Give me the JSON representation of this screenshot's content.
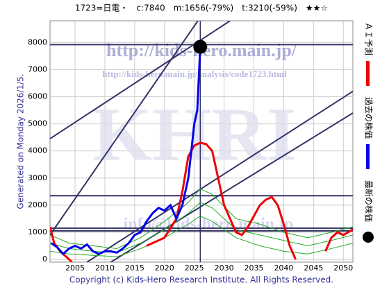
{
  "chart_data": {
    "type": "line",
    "title": "1723=日電・　c:7840　m:1656(-79%)　t:3210(-59%)　★★☆",
    "y_label": "Generated on Monday 2026/1/5.",
    "footer": "Copyright (c) Kids-Hero Research Institute. All Rights Reserved.",
    "watermarks": [
      "http://kids-hero.main.jp/",
      "http://kids-hero.main.jp/analysis/code1723.html",
      "KHRI",
      "info@kids-hero.main.jp"
    ],
    "xlim": [
      2000.8,
      2051.6
    ],
    "ylim": [
      -100,
      8800
    ],
    "xticks": [
      2005,
      2010,
      2015,
      2020,
      2025,
      2030,
      2035,
      2040,
      2045,
      2050
    ],
    "yticks": [
      0,
      1000,
      2000,
      3000,
      4000,
      5000,
      6000,
      7000,
      8000
    ],
    "grid": true,
    "series": [
      {
        "color": "#22aa22",
        "x": [
          2000.8,
          2004,
          2008,
          2012,
          2016,
          2020,
          2024,
          2026,
          2028,
          2032,
          2036,
          2040,
          2044,
          2048,
          2051.6
        ],
        "values": [
          900,
          600,
          500,
          400,
          800,
          1400,
          2100,
          2600,
          2400,
          1500,
          1300,
          1000,
          800,
          1000,
          1200
        ]
      },
      {
        "color": "#22aa22",
        "x": [
          2000.8,
          2004,
          2008,
          2012,
          2016,
          2020,
          2024,
          2026,
          2028,
          2032,
          2036,
          2040,
          2044,
          2048,
          2051.6
        ],
        "values": [
          600,
          400,
          300,
          250,
          600,
          1100,
          1700,
          2100,
          1900,
          1100,
          900,
          700,
          500,
          700,
          900
        ]
      },
      {
        "color": "#22aa22",
        "x": [
          2000.8,
          2004,
          2008,
          2012,
          2016,
          2020,
          2024,
          2026,
          2028,
          2032,
          2036,
          2040,
          2044,
          2048,
          2051.6
        ],
        "values": [
          300,
          200,
          150,
          100,
          400,
          800,
          1300,
          1600,
          1400,
          800,
          500,
          300,
          200,
          400,
          600
        ]
      },
      {
        "name": "ＡＩ予測",
        "color": "#ee0000",
        "x": [
          2000.8,
          2001.5,
          2002.5,
          2003.5,
          2004.5,
          2015,
          2017,
          2019,
          2020,
          2022,
          2023,
          2024,
          2025,
          2026,
          2027,
          2028,
          2029,
          2030,
          2031,
          2032,
          2033,
          2034,
          2035,
          2036,
          2037,
          2038,
          2039,
          2040,
          2041,
          2042,
          2043,
          2047,
          2048,
          2049,
          2050,
          2051.6
        ],
        "values": [
          1200,
          600,
          300,
          100,
          -100,
          null,
          500,
          700,
          800,
          1500,
          2500,
          3800,
          4200,
          4300,
          4250,
          4000,
          3000,
          2000,
          1500,
          1000,
          900,
          1200,
          1600,
          2000,
          2200,
          2300,
          2000,
          1300,
          500,
          0,
          null,
          300,
          800,
          1000,
          900,
          1100
        ]
      },
      {
        "name": "過去の株価",
        "color": "#0000ee",
        "x": [
          2001,
          2002,
          2003,
          2004,
          2005,
          2006,
          2007,
          2008,
          2009,
          2010,
          2011,
          2012,
          2013,
          2014,
          2015,
          2016,
          2017,
          2018,
          2019,
          2020,
          2021,
          2022,
          2023,
          2024,
          2025,
          2025.5,
          2026
        ],
        "values": [
          600,
          450,
          200,
          400,
          500,
          400,
          550,
          300,
          200,
          300,
          300,
          250,
          400,
          600,
          900,
          1000,
          1400,
          1700,
          1900,
          1800,
          2000,
          1500,
          2000,
          3000,
          5000,
          5500,
          7840
        ]
      },
      {
        "name": "最新の株価",
        "color": "#000000",
        "x": [
          2026
        ],
        "values": [
          7840
        ]
      }
    ],
    "trend_lines": [
      {
        "x": [
          2000.8,
          2031
        ],
        "values": [
          4450,
          8800
        ]
      },
      {
        "x": [
          2000.8,
          2025.6
        ],
        "values": [
          900,
          8800
        ]
      },
      {
        "x": [
          2007,
          2051.6
        ],
        "values": [
          -100,
          6200
        ]
      },
      {
        "x": [
          2011,
          2051.6
        ],
        "values": [
          -100,
          5400
        ]
      }
    ],
    "levels": [
      7920,
      2350,
      1150,
      1050
    ],
    "vline": 2026,
    "line_color": "#333366"
  }
}
